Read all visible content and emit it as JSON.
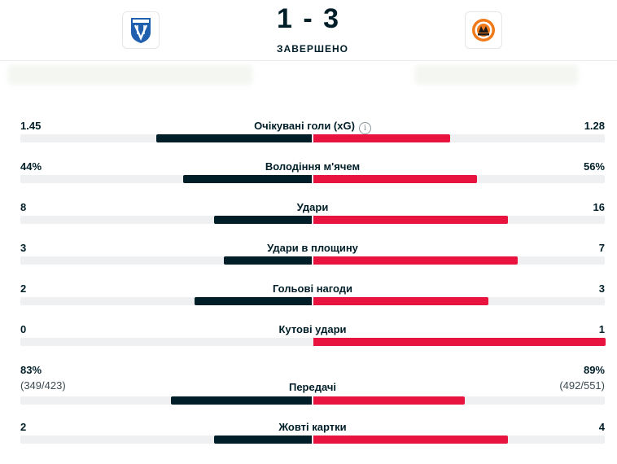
{
  "match": {
    "score": "1 - 3",
    "status": "ЗАВЕРШЕНО",
    "home_team": {
      "crest_icon": "lech-poznan-crest-icon"
    },
    "away_team": {
      "crest_icon": "shakhtar-crest-icon"
    }
  },
  "colors": {
    "home": "#001e28",
    "away": "#e8133f",
    "track": "#eef0f1"
  },
  "stats": [
    {
      "label": "Очікувані голи (xG)",
      "home": "1.45",
      "away": "1.28",
      "home_share": 0.531,
      "away_share": 0.469,
      "info_icon": "ⓘ"
    },
    {
      "label": "Володіння м'ячем",
      "home": "44%",
      "away": "56%",
      "home_share": 0.44,
      "away_share": 0.56
    },
    {
      "label": "Удари",
      "home": "8",
      "away": "16",
      "home_share": 0.333,
      "away_share": 0.667
    },
    {
      "label": "Удари в площину",
      "home": "3",
      "away": "7",
      "home_share": 0.3,
      "away_share": 0.7
    },
    {
      "label": "Гольові нагоди",
      "home": "2",
      "away": "3",
      "home_share": 0.4,
      "away_share": 0.6
    },
    {
      "label": "Кутові удари",
      "home": "0",
      "away": "1",
      "home_share": 0.0,
      "away_share": 1.0
    },
    {
      "label": "Передачі",
      "home": "83%",
      "away": "89%",
      "home_sub": "(349/423)",
      "away_sub": "(492/551)",
      "home_share": 0.483,
      "away_share": 0.517
    },
    {
      "label": "Жовті картки",
      "home": "2",
      "away": "4",
      "home_share": 0.333,
      "away_share": 0.667
    }
  ]
}
